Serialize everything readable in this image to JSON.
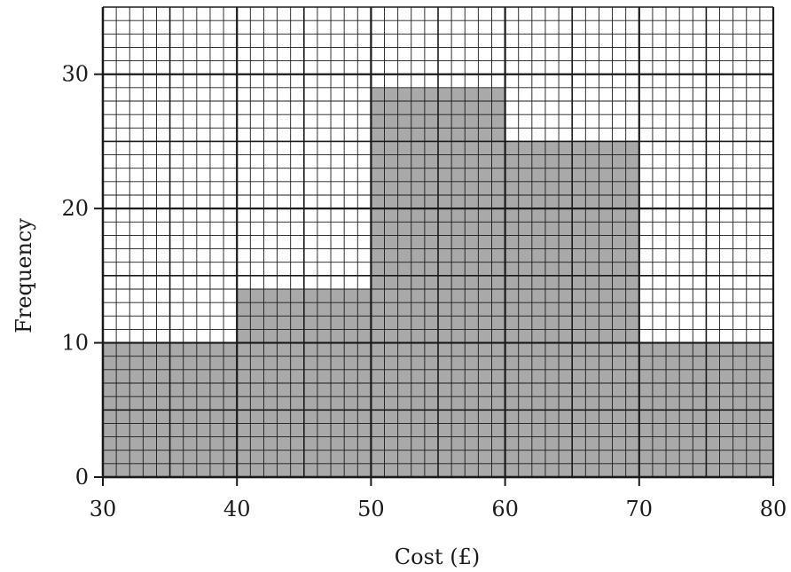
{
  "chart_data": {
    "type": "bar",
    "subtype": "histogram",
    "title": "",
    "xlabel": "Cost (£)",
    "ylabel": "Frequency",
    "xlim": [
      30,
      80
    ],
    "ylim": [
      0,
      35
    ],
    "x_ticks": [
      "30",
      "40",
      "50",
      "60",
      "70",
      "80"
    ],
    "y_ticks": [
      "0",
      "10",
      "20",
      "30"
    ],
    "bins": [
      {
        "from": 30,
        "to": 40,
        "value": 10
      },
      {
        "from": 40,
        "to": 50,
        "value": 14
      },
      {
        "from": 50,
        "to": 60,
        "value": 29
      },
      {
        "from": 60,
        "to": 70,
        "value": 25
      },
      {
        "from": 70,
        "to": 80,
        "value": 10
      }
    ],
    "grid": true,
    "bar_color": "#a9a9a9",
    "grid_color": "#1a1a1a"
  }
}
